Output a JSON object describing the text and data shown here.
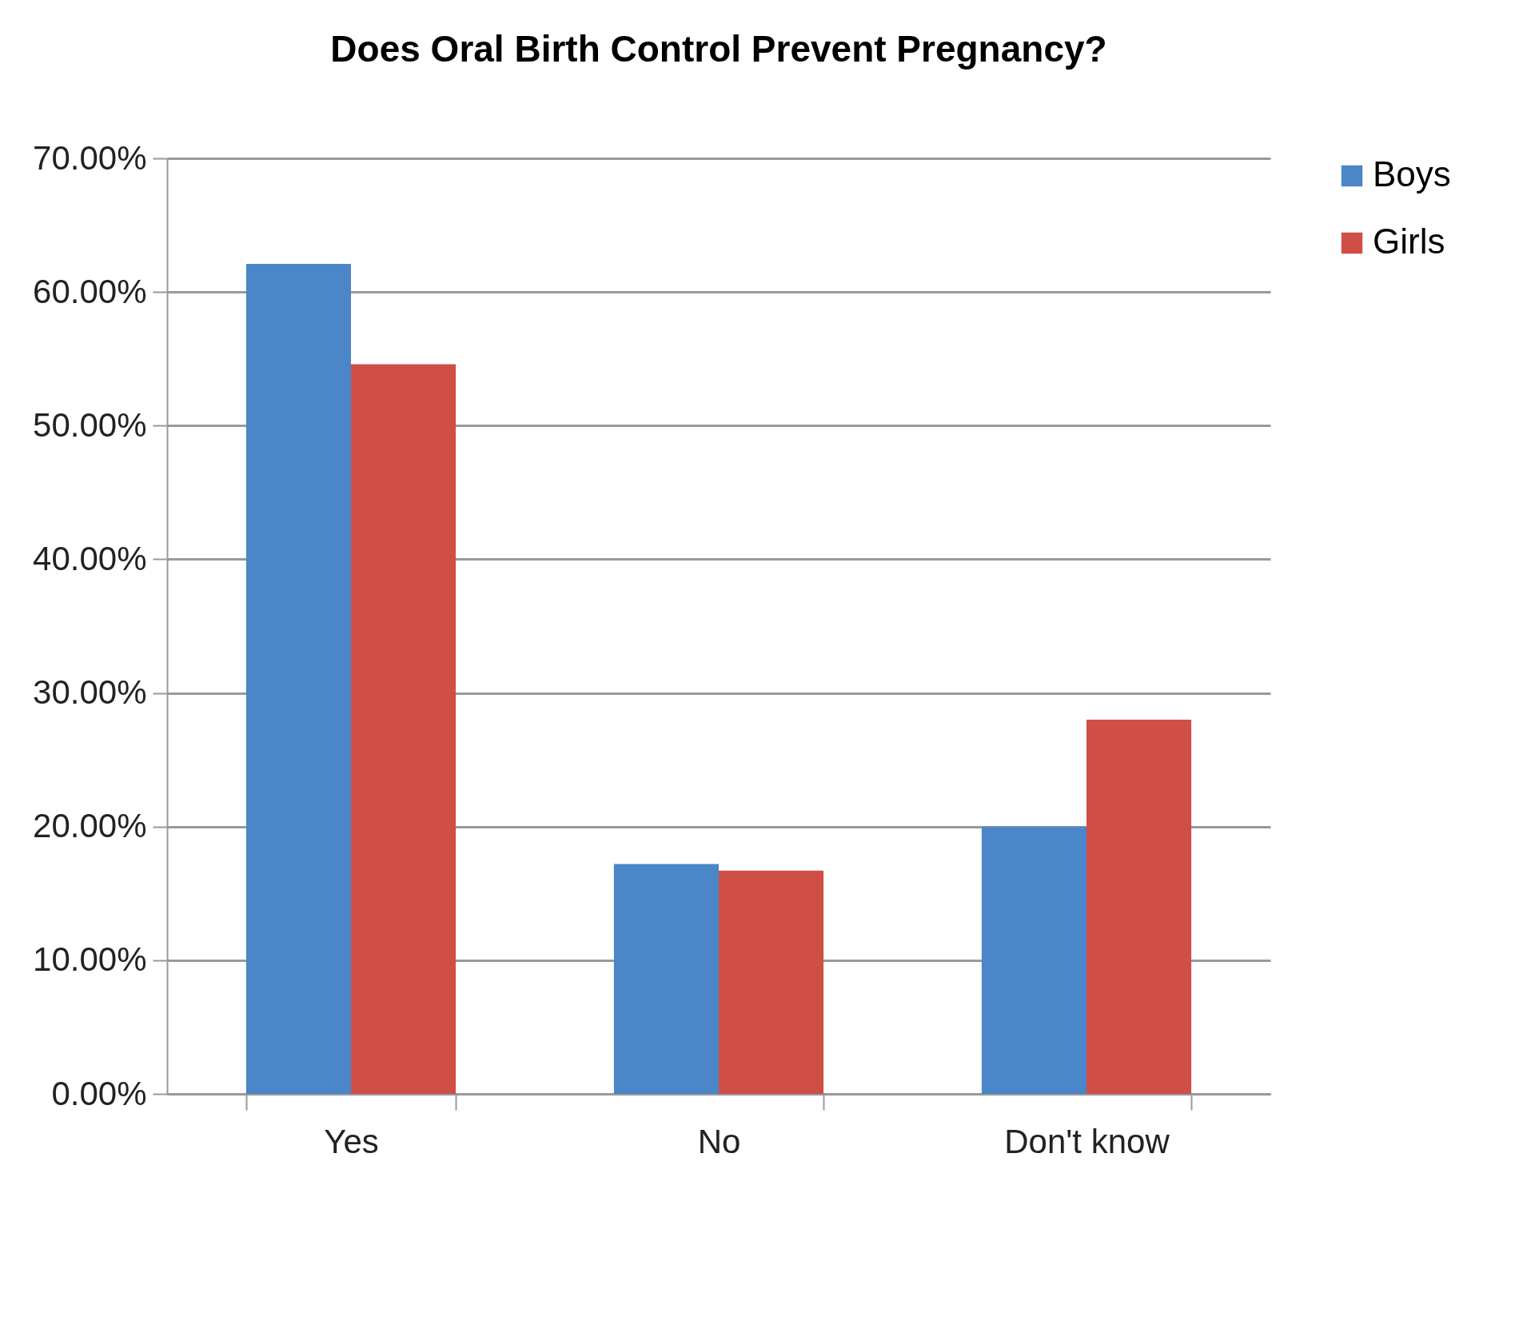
{
  "chart_data": {
    "type": "bar",
    "title": "Does Oral Birth Control Prevent Pregnancy?",
    "categories": [
      "Yes",
      "No",
      "Don't know"
    ],
    "series": [
      {
        "name": "Boys",
        "color": "#4a86c8",
        "values": [
          62.1,
          17.2,
          20
        ]
      },
      {
        "name": "Girls",
        "color": "#cf4f47",
        "values": [
          54.6,
          16.7,
          28
        ]
      }
    ],
    "ylim": [
      0,
      70
    ],
    "yticks": [
      {
        "value": 0,
        "label": "0.00%"
      },
      {
        "value": 10,
        "label": "10.00%"
      },
      {
        "value": 20,
        "label": "20.00%"
      },
      {
        "value": 30,
        "label": "30.00%"
      },
      {
        "value": 40,
        "label": "40.00%"
      },
      {
        "value": 50,
        "label": "50.00%"
      },
      {
        "value": 60,
        "label": "60.00%"
      },
      {
        "value": 70,
        "label": "70.00%"
      }
    ],
    "grid": "y",
    "legend": "right"
  }
}
